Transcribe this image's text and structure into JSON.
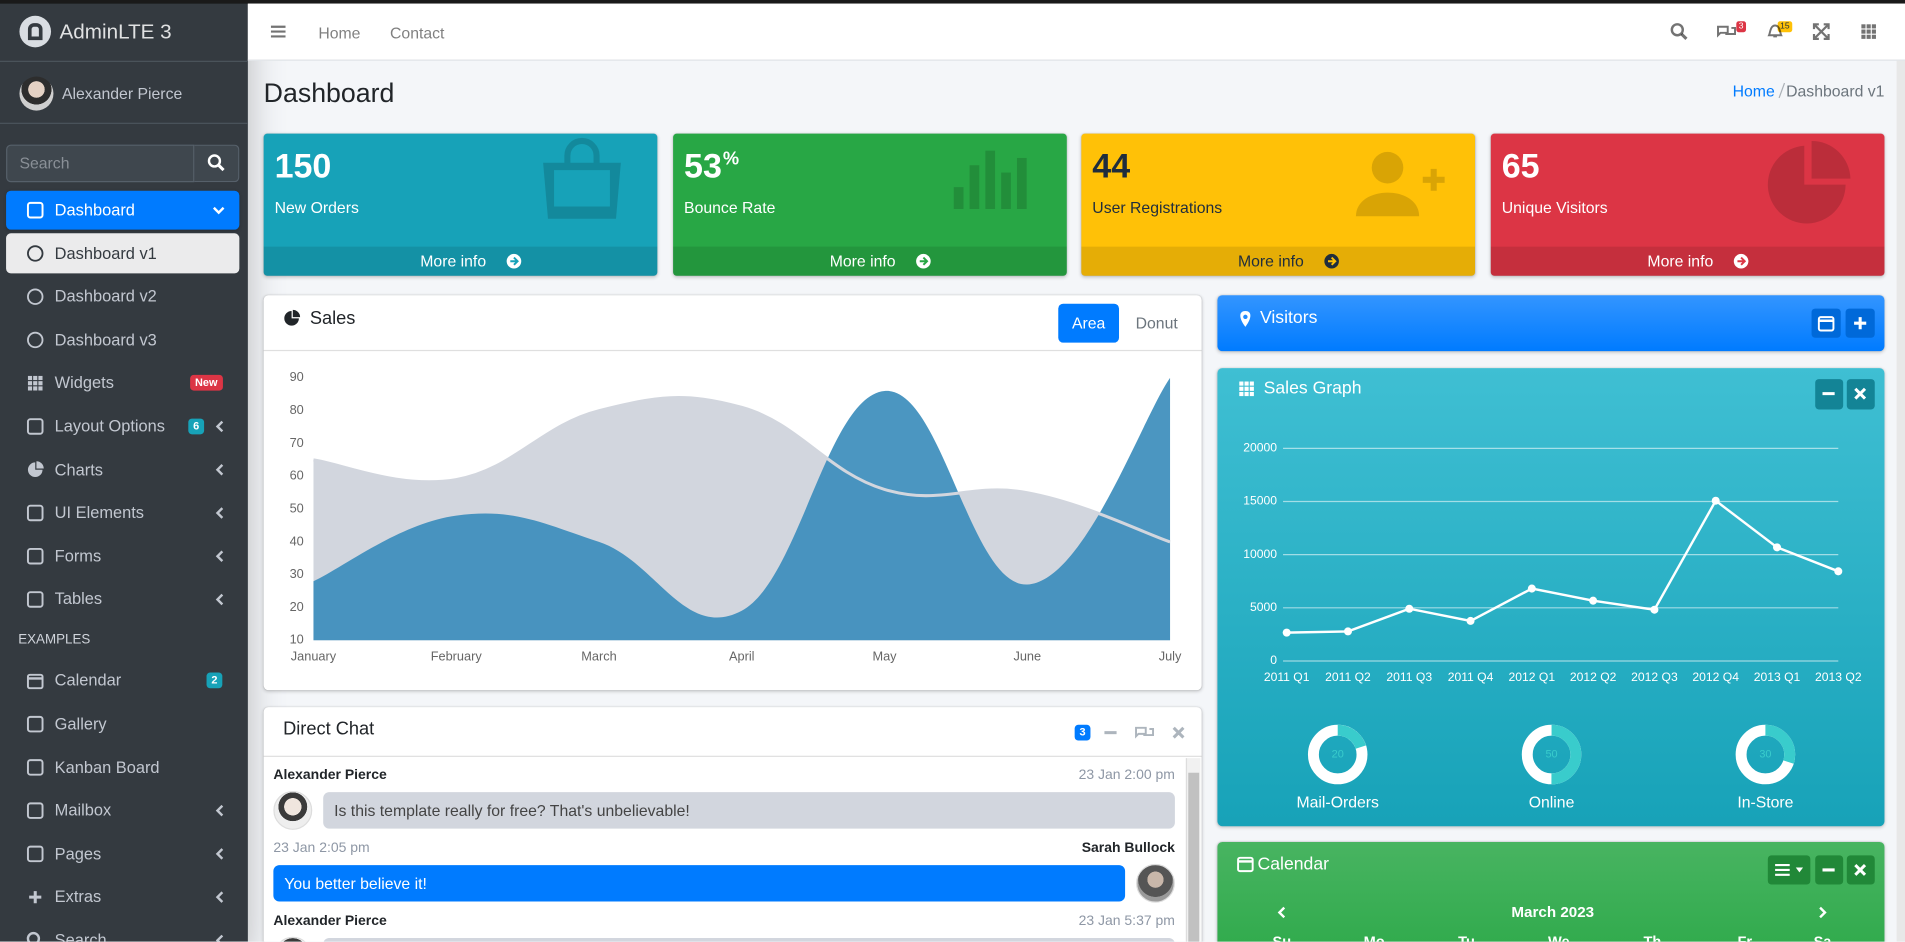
{
  "sidebar": {
    "brand": "AdminLTE 3",
    "user": "Alexander Pierce",
    "search": "Search",
    "menu": [
      {
        "label": "Dashboard",
        "state": "open",
        "icon": "gauge"
      },
      {
        "label": "Dashboard v1",
        "state": "active",
        "icon": "circle"
      },
      {
        "label": "Dashboard v2",
        "icon": "circle"
      },
      {
        "label": "Dashboard v3",
        "icon": "circle"
      },
      {
        "label": "Widgets",
        "icon": "grid",
        "badge": "New",
        "badge_color": "#dc3545"
      },
      {
        "label": "Layout Options",
        "icon": "copy",
        "badge": 6,
        "badge_color": "#17a2b8",
        "submenu": true
      },
      {
        "label": "Charts",
        "icon": "pie",
        "submenu": true
      },
      {
        "label": "UI Elements",
        "icon": "tree",
        "submenu": true
      },
      {
        "label": "Forms",
        "icon": "edit",
        "submenu": true
      },
      {
        "label": "Tables",
        "icon": "table",
        "submenu": true
      },
      {
        "label": "EXAMPLES",
        "kind": "header"
      },
      {
        "label": "Calendar",
        "icon": "cal",
        "badge": 2,
        "badge_color": "#17a2b8"
      },
      {
        "label": "Gallery",
        "icon": "image"
      },
      {
        "label": "Kanban Board",
        "icon": "columns"
      },
      {
        "label": "Mailbox",
        "icon": "mail",
        "submenu": true
      },
      {
        "label": "Pages",
        "icon": "book",
        "submenu": true
      },
      {
        "label": "Extras",
        "icon": "plus",
        "submenu": true
      },
      {
        "label": "Search",
        "icon": "search",
        "submenu": true
      }
    ]
  },
  "navbar": {
    "links": [
      "Home",
      "Contact"
    ],
    "messages_badge": 3,
    "notifications_badge": 15
  },
  "page": {
    "title": "Dashboard",
    "breadcrumb": [
      "Home",
      "Dashboard v1"
    ]
  },
  "small_boxes": [
    {
      "value": 150,
      "label": "New Orders",
      "color": "#17a2b8",
      "icon": "bag"
    },
    {
      "value": 53,
      "unit": "%",
      "label": "Bounce Rate",
      "color": "#28a745",
      "icon": "bars"
    },
    {
      "value": 44,
      "label": "User Registrations",
      "color": "#ffc107",
      "icon": "user",
      "dark_text": true
    },
    {
      "value": 65,
      "label": "Unique Visitors",
      "color": "#dc3545",
      "icon": "pie"
    }
  ],
  "more_info": "More info",
  "sales": {
    "title": "Sales",
    "tabs": [
      "Area",
      "Donut"
    ],
    "active_tab": 0,
    "categories": [
      "January",
      "February",
      "March",
      "April",
      "May",
      "June",
      "July"
    ],
    "ylim": [
      10,
      90
    ],
    "yticks": [
      10,
      20,
      30,
      40,
      50,
      60,
      70,
      80,
      90
    ],
    "series": [
      {
        "color": "#d2d6de",
        "values": [
          65,
          59,
          80,
          81,
          56,
          55,
          40
        ]
      },
      {
        "color": "#3c8dbc",
        "values": [
          28,
          48,
          40,
          19,
          86,
          27,
          90
        ]
      }
    ]
  },
  "chat": {
    "title": "Direct Chat",
    "badge": 3,
    "messages": [
      {
        "name": "Alexander Pierce",
        "time": "23 Jan 2:00 pm",
        "text": "Is this template really for free? That's unbelievable!",
        "side": "left"
      },
      {
        "name": "Sarah Bullock",
        "time": "23 Jan 2:05 pm",
        "text": "You better believe it!",
        "side": "right"
      },
      {
        "name": "Alexander Pierce",
        "time": "23 Jan 5:37 pm",
        "side": "left"
      }
    ]
  },
  "visitors": {
    "title": "Visitors"
  },
  "sales_graph": {
    "title": "Sales Graph",
    "categories": [
      "2011 Q1",
      "2011 Q2",
      "2011 Q3",
      "2011 Q4",
      "2012 Q1",
      "2012 Q2",
      "2012 Q3",
      "2012 Q4",
      "2013 Q1",
      "2013 Q2"
    ],
    "values": [
      2666,
      2778,
      4912,
      3767,
      6810,
      5670,
      4820,
      15073,
      10687,
      8432
    ],
    "ylim": [
      0,
      20000
    ],
    "yticks": [
      0,
      5000,
      10000,
      15000,
      20000
    ],
    "knobs": [
      {
        "value": 20,
        "label": "Mail-Orders"
      },
      {
        "value": 50,
        "label": "Online"
      },
      {
        "value": 30,
        "label": "In-Store"
      }
    ],
    "knob_max": 100
  },
  "calendar": {
    "title": "Calendar",
    "month": "March 2023",
    "weekdays": [
      "Su",
      "Mo",
      "Tu",
      "We",
      "Th",
      "Fr",
      "Sa"
    ]
  }
}
